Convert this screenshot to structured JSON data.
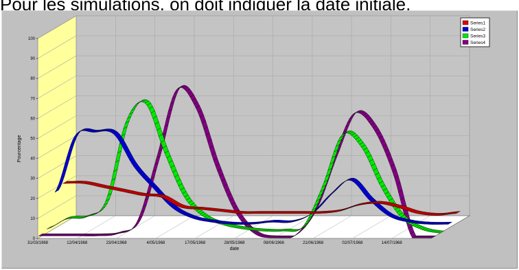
{
  "heading": "Pour les simulations, on doit indiquer la date initiale.",
  "chart_data": {
    "type": "line",
    "style": "3d-ribbon",
    "xlabel": "date",
    "ylabel": "Pourcentage",
    "ylim": [
      0,
      100
    ],
    "yticks": [
      0,
      10,
      20,
      30,
      40,
      50,
      60,
      70,
      80,
      90,
      100
    ],
    "x_tick_labels": [
      "31/03/1968",
      "12/04/1968",
      "23/04/1968",
      "4/05/1968",
      "17/05/1968",
      "28/05/1968",
      "08/06/1968",
      "21/06/1968",
      "02/07/1968",
      "14/07/1968"
    ],
    "grid": true,
    "legend_position": "top-right",
    "x": [
      0,
      1,
      2,
      3,
      4,
      5,
      6,
      7,
      8,
      9,
      10,
      11,
      12,
      13,
      14,
      15,
      16,
      17,
      18,
      19,
      20
    ],
    "series": [
      {
        "name": "Series1",
        "color": "#e00000",
        "values": [
          20,
          20,
          18,
          16,
          14,
          13,
          8,
          7,
          6,
          5,
          5,
          5,
          5,
          5,
          6,
          9,
          10,
          8,
          5,
          4,
          5
        ]
      },
      {
        "name": "Series2",
        "color": "#0000d8",
        "values": [
          18,
          46,
          48,
          47,
          31,
          20,
          10,
          5,
          3,
          2,
          2,
          3,
          3,
          7,
          17,
          24,
          14,
          6,
          3,
          2,
          2
        ]
      },
      {
        "name": "Series3",
        "color": "#00e800",
        "values": [
          2,
          7,
          8,
          16,
          55,
          65,
          40,
          18,
          8,
          4,
          2,
          1,
          1,
          3,
          23,
          49,
          43,
          23,
          8,
          2,
          0
        ]
      },
      {
        "name": "Series4",
        "color": "#800080",
        "values": [
          1,
          1,
          1,
          1,
          2,
          8,
          40,
          74,
          65,
          36,
          13,
          2,
          0,
          1,
          14,
          40,
          62,
          55,
          33,
          0,
          0
        ]
      }
    ]
  }
}
